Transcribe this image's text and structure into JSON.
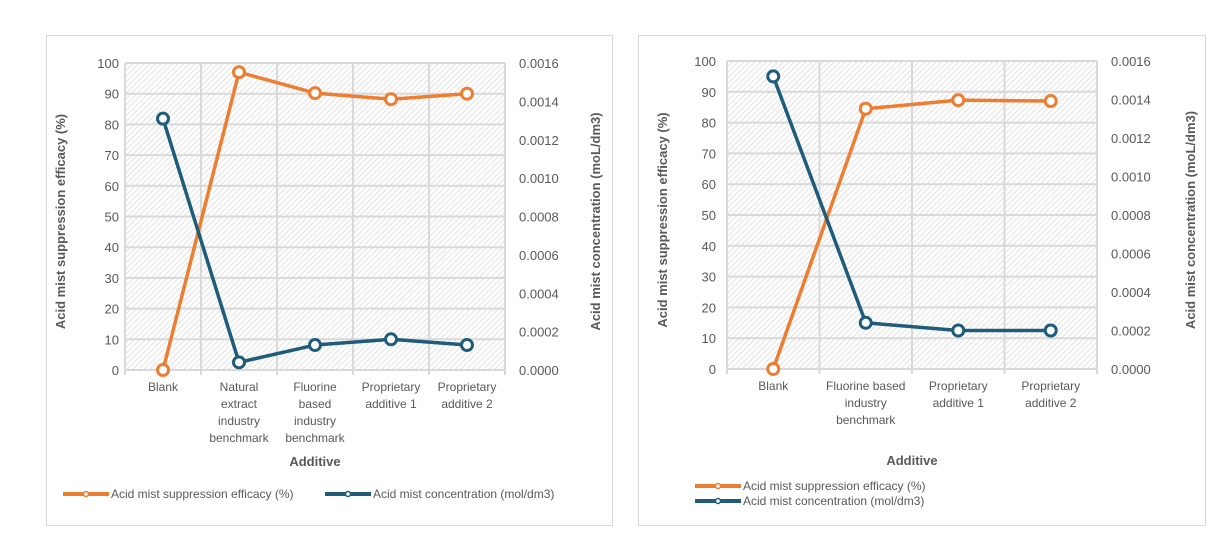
{
  "colors": {
    "efficacy": "#ED7D31",
    "concentration": "#1F5C7A",
    "grid": "#d9d9d9",
    "hatch": "#d0d0d0",
    "text": "#595959"
  },
  "chart_data": [
    {
      "type": "line",
      "title": "",
      "xlabel": "Additive",
      "ylabel": "Acid mist suppression efficacy (%)",
      "y2label": "Acid mist concentration (moL/dm3)",
      "categories": [
        [
          "Blank"
        ],
        [
          "Natural",
          "extract",
          "industry",
          "benchmark"
        ],
        [
          "Fluorine",
          "based",
          "industry",
          "benchmark"
        ],
        [
          "Proprietary",
          "additive 1"
        ],
        [
          "Proprietary",
          "additive 2"
        ]
      ],
      "ylim": [
        0,
        100
      ],
      "yticks": [
        "0",
        "10",
        "20",
        "30",
        "40",
        "50",
        "60",
        "70",
        "80",
        "90",
        "100"
      ],
      "y2lim": [
        0,
        0.0016
      ],
      "y2ticks": [
        "0.0000",
        "0.0002",
        "0.0004",
        "0.0006",
        "0.0008",
        "0.0010",
        "0.0012",
        "0.0014",
        "0.0016"
      ],
      "grid": true,
      "legend_position": "bottom",
      "legend_layout": "row",
      "series": [
        {
          "name": "Acid mist suppression efficacy (%)",
          "axis": "left",
          "color_key": "efficacy",
          "values": [
            0,
            97,
            90.2,
            88.2,
            90.0
          ]
        },
        {
          "name": "Acid mist concentration (mol/dm3)",
          "axis": "right",
          "color_key": "concentration",
          "values": [
            0.00131,
            4e-05,
            0.00013,
            0.00016,
            0.00013
          ]
        }
      ]
    },
    {
      "type": "line",
      "title": "",
      "xlabel": "Additive",
      "ylabel": "Acid mist suppression efficacy (%)",
      "y2label": "Acid mist concentration (moL/dm3)",
      "categories": [
        [
          "Blank"
        ],
        [
          "Fluorine based",
          "industry",
          "benchmark"
        ],
        [
          "Proprietary",
          "additive 1"
        ],
        [
          "Proprietary",
          "additive 2"
        ]
      ],
      "ylim": [
        0,
        100
      ],
      "yticks": [
        "0",
        "10",
        "20",
        "30",
        "40",
        "50",
        "60",
        "70",
        "80",
        "90",
        "100"
      ],
      "y2lim": [
        0,
        0.0016
      ],
      "y2ticks": [
        "0.0000",
        "0.0002",
        "0.0004",
        "0.0006",
        "0.0008",
        "0.0010",
        "0.0012",
        "0.0014",
        "0.0016"
      ],
      "grid": true,
      "legend_position": "bottom-left",
      "legend_layout": "column",
      "series": [
        {
          "name": "Acid mist suppression efficacy (%)",
          "axis": "left",
          "color_key": "efficacy",
          "values": [
            0,
            84.5,
            87.3,
            87.0
          ]
        },
        {
          "name": "Acid mist concentration (mol/dm3)",
          "axis": "right",
          "color_key": "concentration",
          "values": [
            0.00152,
            0.00024,
            0.0002,
            0.0002
          ]
        }
      ]
    }
  ]
}
